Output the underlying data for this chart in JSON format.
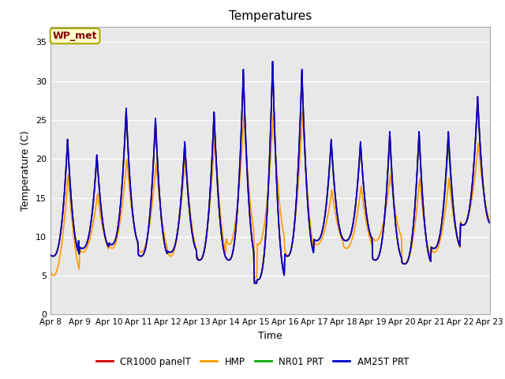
{
  "title": "Temperatures",
  "xlabel": "Time",
  "ylabel": "Temperature (C)",
  "ylim": [
    0,
    37
  ],
  "yticks": [
    0,
    5,
    10,
    15,
    20,
    25,
    30,
    35
  ],
  "x_labels": [
    "Apr 8",
    "Apr 9",
    "Apr 10",
    "Apr 11",
    "Apr 12",
    "Apr 13",
    "Apr 14",
    "Apr 15",
    "Apr 16",
    "Apr 17",
    "Apr 18",
    "Apr 19",
    "Apr 20",
    "Apr 21",
    "Apr 22",
    "Apr 23"
  ],
  "legend_labels": [
    "CR1000 panelT",
    "HMP",
    "NR01 PRT",
    "AM25T PRT"
  ],
  "legend_colors": [
    "#cc0000",
    "#ff9900",
    "#00aa00",
    "#0000cc"
  ],
  "wp_met_label": "WP_met",
  "wp_met_bg": "#ffffcc",
  "wp_met_border": "#aaaa00",
  "wp_met_text_color": "#880000",
  "plot_bg": "#e8e8e8",
  "line_width": 1.2,
  "n_days": 15,
  "n_per_day": 48,
  "peak_temps_red": [
    22.5,
    20.5,
    26.5,
    25.2,
    22.2,
    26.0,
    31.0,
    32.5,
    31.2,
    22.5,
    22.2,
    23.5,
    23.5,
    23.5,
    28.0
  ],
  "peak_temps_orange": [
    18.0,
    15.5,
    20.0,
    19.5,
    20.5,
    23.0,
    25.5,
    25.5,
    26.0,
    16.0,
    16.5,
    18.0,
    17.5,
    17.5,
    22.0
  ],
  "peak_temps_green": [
    22.5,
    20.5,
    26.0,
    25.0,
    22.0,
    26.0,
    31.0,
    32.5,
    31.0,
    22.0,
    22.0,
    23.0,
    23.5,
    22.5,
    27.5
  ],
  "peak_temps_blue": [
    22.5,
    20.5,
    26.5,
    25.2,
    22.2,
    26.0,
    31.5,
    32.5,
    31.5,
    22.5,
    22.2,
    23.5,
    23.5,
    23.5,
    28.0
  ],
  "base_temps": [
    7.5,
    8.5,
    9.0,
    7.5,
    8.0,
    7.0,
    7.0,
    4.5,
    7.5,
    9.5,
    9.5,
    7.0,
    6.5,
    8.5,
    11.5
  ],
  "base_temps_orange": [
    5.0,
    8.0,
    8.5,
    8.0,
    7.5,
    7.0,
    9.0,
    9.0,
    7.5,
    9.0,
    8.5,
    9.5,
    6.5,
    8.0,
    11.5
  ]
}
